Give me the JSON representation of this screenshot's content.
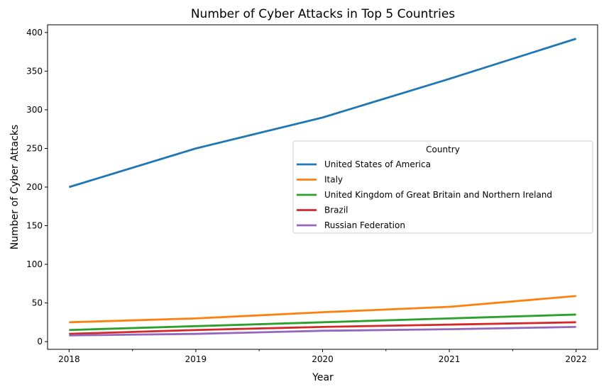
{
  "chart_data": {
    "type": "line",
    "title": "Number of Cyber Attacks in Top 5 Countries",
    "xlabel": "Year",
    "ylabel": "Number of Cyber Attacks",
    "x": [
      2018,
      2019,
      2020,
      2021,
      2022
    ],
    "x_tick_labels": [
      "2018",
      "2019",
      "2020",
      "2021",
      "2022"
    ],
    "xlim": [
      2017.83,
      2022.17
    ],
    "ylim": [
      -10,
      410
    ],
    "y_ticks": [
      0,
      50,
      100,
      150,
      200,
      250,
      300,
      350,
      400
    ],
    "y_tick_labels": [
      "0",
      "50",
      "100",
      "150",
      "200",
      "250",
      "300",
      "350",
      "400"
    ],
    "grid": false,
    "legend": {
      "title": "Country",
      "placement": "center-right"
    },
    "series": [
      {
        "name": "United States of America",
        "color": "#1f77b4",
        "values": [
          200,
          250,
          290,
          340,
          392
        ]
      },
      {
        "name": "Italy",
        "color": "#ff7f0e",
        "values": [
          25,
          30,
          38,
          45,
          59
        ]
      },
      {
        "name": "United Kingdom of Great Britain and Northern Ireland",
        "color": "#2ca02c",
        "values": [
          15,
          20,
          25,
          30,
          35
        ]
      },
      {
        "name": "Brazil",
        "color": "#d62728",
        "values": [
          10,
          15,
          19,
          22,
          25
        ]
      },
      {
        "name": "Russian Federation",
        "color": "#9467bd",
        "values": [
          8,
          10,
          14,
          16,
          19
        ]
      }
    ]
  }
}
